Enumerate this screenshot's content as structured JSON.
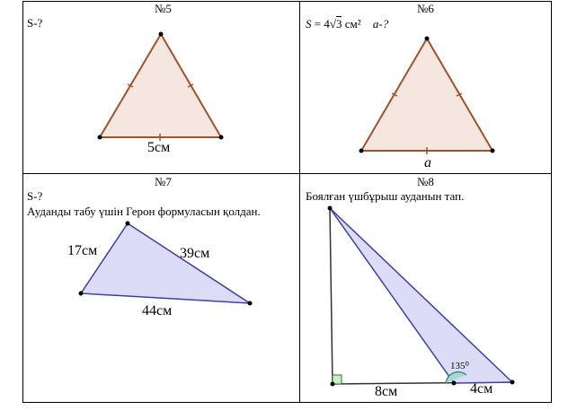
{
  "cells": {
    "c5": {
      "number": "№5",
      "question": "S-?",
      "side_label": "5см"
    },
    "c6": {
      "number": "№6",
      "formula_s": "S",
      "formula_eq": " = 4",
      "formula_root": "3",
      "formula_unit": " см²",
      "formula_ask": "a-?",
      "side_label": "a"
    },
    "c7": {
      "number": "№7",
      "question": "S-?",
      "instruction": "Ауданды табу үшін Герон формуласын қолдан.",
      "side_a": "17см",
      "side_b": "39см",
      "side_c": "44см"
    },
    "c8": {
      "number": "№8",
      "instruction": "Боялған үшбұрыш ауданын тап.",
      "angle_label": "135⁰",
      "seg1": "8см",
      "seg2": "4см"
    }
  },
  "colors": {
    "triangle_fill_brown": "#f6e6e0",
    "triangle_stroke_brown": "#a0522d",
    "triangle_fill_blue": "#dcdcf6",
    "triangle_stroke_blue": "#4040a0"
  }
}
